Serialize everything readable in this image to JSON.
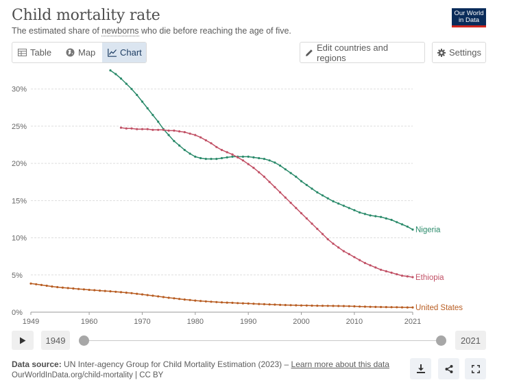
{
  "header": {
    "title": "Child mortality rate",
    "subtitle_prefix": "The estimated share of ",
    "subtitle_term": "newborns",
    "subtitle_suffix": " who die before reaching the age of five.",
    "logo_line1": "Our World",
    "logo_line2": "in Data"
  },
  "tabs": [
    {
      "label": "Table",
      "icon": "table-icon"
    },
    {
      "label": "Map",
      "icon": "globe-icon"
    },
    {
      "label": "Chart",
      "icon": "line-chart-icon",
      "active": true
    }
  ],
  "toolbar": {
    "edit_label": "Edit countries and regions",
    "settings_label": "Settings"
  },
  "timeline": {
    "start_year": "1949",
    "end_year": "2021"
  },
  "footer": {
    "source_label": "Data source:",
    "source_text": " UN Inter-agency Group for Child Mortality Estimation (2023) – ",
    "learn_more": "Learn more about this data",
    "url_line": "OurWorldInData.org/child-mortality | CC BY"
  },
  "chart_data": {
    "type": "line",
    "title": "Child mortality rate",
    "subtitle": "The estimated share of newborns who die before reaching the age of five.",
    "xlabel": "",
    "ylabel": "",
    "xlim": [
      1949,
      2021
    ],
    "ylim": [
      0,
      32
    ],
    "grid": true,
    "x_ticks": [
      1949,
      1960,
      1970,
      1980,
      1990,
      2000,
      2010,
      2021
    ],
    "y_ticks": [
      0,
      5,
      10,
      15,
      20,
      25,
      30
    ],
    "y_tick_labels": [
      "0%",
      "5%",
      "10%",
      "15%",
      "20%",
      "25%",
      "30%"
    ],
    "legend": "inline-end-labels",
    "series": [
      {
        "name": "Nigeria",
        "color": "#2a8a6a",
        "x": [
          1964,
          1965,
          1966,
          1967,
          1968,
          1969,
          1970,
          1971,
          1972,
          1973,
          1974,
          1975,
          1976,
          1977,
          1978,
          1979,
          1980,
          1981,
          1982,
          1983,
          1984,
          1985,
          1986,
          1987,
          1988,
          1989,
          1990,
          1991,
          1992,
          1993,
          1994,
          1995,
          1996,
          1997,
          1998,
          1999,
          2000,
          2001,
          2002,
          2003,
          2004,
          2005,
          2006,
          2007,
          2008,
          2009,
          2010,
          2011,
          2012,
          2013,
          2014,
          2015,
          2016,
          2017,
          2018,
          2019,
          2020,
          2021
        ],
        "values": [
          32.5,
          32.0,
          31.4,
          30.7,
          30.0,
          29.2,
          28.3,
          27.4,
          26.5,
          25.6,
          24.6,
          23.8,
          23.0,
          22.4,
          21.8,
          21.3,
          20.9,
          20.7,
          20.6,
          20.6,
          20.6,
          20.7,
          20.8,
          20.9,
          20.9,
          20.9,
          20.9,
          20.8,
          20.7,
          20.6,
          20.4,
          20.1,
          19.7,
          19.2,
          18.7,
          18.2,
          17.6,
          17.1,
          16.6,
          16.1,
          15.7,
          15.3,
          14.9,
          14.6,
          14.3,
          14.0,
          13.7,
          13.4,
          13.2,
          13.0,
          12.9,
          12.8,
          12.6,
          12.4,
          12.1,
          11.8,
          11.5,
          11.1
        ]
      },
      {
        "name": "Ethiopia",
        "color": "#c15065",
        "x": [
          1966,
          1967,
          1968,
          1969,
          1970,
          1971,
          1972,
          1973,
          1974,
          1975,
          1976,
          1977,
          1978,
          1979,
          1980,
          1981,
          1982,
          1983,
          1984,
          1985,
          1986,
          1987,
          1988,
          1989,
          1990,
          1991,
          1992,
          1993,
          1994,
          1995,
          1996,
          1997,
          1998,
          1999,
          2000,
          2001,
          2002,
          2003,
          2004,
          2005,
          2006,
          2007,
          2008,
          2009,
          2010,
          2011,
          2012,
          2013,
          2014,
          2015,
          2016,
          2017,
          2018,
          2019,
          2020,
          2021
        ],
        "values": [
          24.8,
          24.7,
          24.7,
          24.6,
          24.6,
          24.6,
          24.5,
          24.5,
          24.5,
          24.4,
          24.4,
          24.3,
          24.2,
          24.0,
          23.8,
          23.5,
          23.1,
          22.7,
          22.2,
          21.8,
          21.5,
          21.2,
          20.8,
          20.4,
          19.9,
          19.4,
          18.8,
          18.2,
          17.5,
          16.8,
          16.1,
          15.4,
          14.7,
          14.0,
          13.3,
          12.6,
          11.9,
          11.2,
          10.5,
          9.8,
          9.2,
          8.7,
          8.2,
          7.8,
          7.4,
          7.0,
          6.6,
          6.3,
          6.0,
          5.7,
          5.5,
          5.3,
          5.1,
          4.9,
          4.8,
          4.7
        ]
      },
      {
        "name": "United States",
        "color": "#b85d22",
        "x": [
          1949,
          1950,
          1951,
          1952,
          1953,
          1954,
          1955,
          1956,
          1957,
          1958,
          1959,
          1960,
          1961,
          1962,
          1963,
          1964,
          1965,
          1966,
          1967,
          1968,
          1969,
          1970,
          1971,
          1972,
          1973,
          1974,
          1975,
          1976,
          1977,
          1978,
          1979,
          1980,
          1981,
          1982,
          1983,
          1984,
          1985,
          1986,
          1987,
          1988,
          1989,
          1990,
          1991,
          1992,
          1993,
          1994,
          1995,
          1996,
          1997,
          1998,
          1999,
          2000,
          2001,
          2002,
          2003,
          2004,
          2005,
          2006,
          2007,
          2008,
          2009,
          2010,
          2011,
          2012,
          2013,
          2014,
          2015,
          2016,
          2017,
          2018,
          2019,
          2020,
          2021
        ],
        "values": [
          3.85,
          3.75,
          3.65,
          3.55,
          3.45,
          3.37,
          3.3,
          3.24,
          3.18,
          3.12,
          3.06,
          3.0,
          2.95,
          2.9,
          2.85,
          2.8,
          2.74,
          2.68,
          2.62,
          2.55,
          2.47,
          2.39,
          2.3,
          2.21,
          2.12,
          2.03,
          1.94,
          1.86,
          1.78,
          1.7,
          1.63,
          1.56,
          1.5,
          1.45,
          1.4,
          1.36,
          1.32,
          1.28,
          1.25,
          1.22,
          1.19,
          1.16,
          1.13,
          1.1,
          1.07,
          1.04,
          1.01,
          0.98,
          0.96,
          0.94,
          0.92,
          0.9,
          0.89,
          0.88,
          0.87,
          0.86,
          0.85,
          0.84,
          0.83,
          0.82,
          0.8,
          0.78,
          0.76,
          0.74,
          0.72,
          0.7,
          0.69,
          0.68,
          0.67,
          0.66,
          0.65,
          0.64,
          0.64
        ]
      }
    ]
  }
}
